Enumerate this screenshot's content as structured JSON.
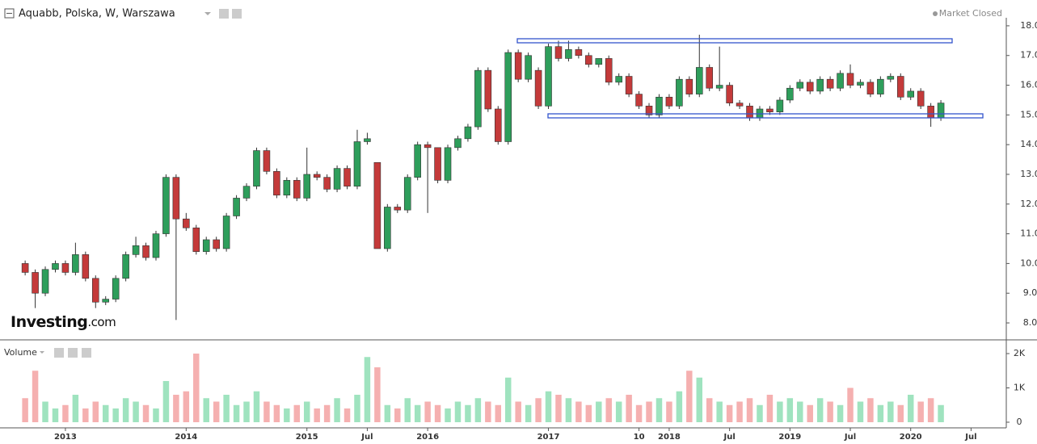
{
  "header": {
    "title": "Aquabb, Polska, W, Warszawa",
    "status": "Market Closed",
    "logo": "Investing",
    "logo_suffix": ".com"
  },
  "chart_data": [
    {
      "type": "candlestick",
      "x": [
        "2012-09",
        "2012-10",
        "2012-11",
        "2012-12",
        "2013-01",
        "2013-02",
        "2013-03",
        "2013-04",
        "2013-05",
        "2013-06",
        "2013-07",
        "2013-08",
        "2013-09",
        "2013-10",
        "2013-11",
        "2013-12",
        "2014-01",
        "2014-02",
        "2014-03",
        "2014-04",
        "2014-05",
        "2014-06",
        "2014-07",
        "2014-08",
        "2014-09",
        "2014-10",
        "2014-11",
        "2014-12",
        "2015-01",
        "2015-02",
        "2015-03",
        "2015-04",
        "2015-05",
        "2015-06",
        "2015-07",
        "2015-08",
        "2015-09",
        "2015-10",
        "2015-11",
        "2015-12",
        "2016-01",
        "2016-02",
        "2016-03",
        "2016-04",
        "2016-05",
        "2016-06",
        "2016-07",
        "2016-08",
        "2016-09",
        "2016-10",
        "2016-11",
        "2016-12",
        "2017-01",
        "2017-02",
        "2017-03",
        "2017-04",
        "2017-05",
        "2017-06",
        "2017-07",
        "2017-08",
        "2017-09",
        "2017-10",
        "2017-11",
        "2017-12",
        "2018-01",
        "2018-02",
        "2018-03",
        "2018-04",
        "2018-05",
        "2018-06",
        "2018-07",
        "2018-08",
        "2018-09",
        "2018-10",
        "2018-11",
        "2018-12",
        "2019-01",
        "2019-02",
        "2019-03",
        "2019-04",
        "2019-05",
        "2019-06",
        "2019-07",
        "2019-08",
        "2019-09",
        "2019-10",
        "2019-11",
        "2019-12",
        "2020-01",
        "2020-02",
        "2020-03",
        "2020-04"
      ],
      "open": [
        10.0,
        9.7,
        9.0,
        9.8,
        10.0,
        9.7,
        10.3,
        9.5,
        8.7,
        8.8,
        9.5,
        10.3,
        10.6,
        10.2,
        11.0,
        12.9,
        11.5,
        11.2,
        10.4,
        10.8,
        10.5,
        11.6,
        12.2,
        12.6,
        13.8,
        13.1,
        12.3,
        12.8,
        12.2,
        13.0,
        12.9,
        12.5,
        13.2,
        12.6,
        14.1,
        13.4,
        10.5,
        11.9,
        11.8,
        12.9,
        14.0,
        13.9,
        12.8,
        13.9,
        14.2,
        14.6,
        16.5,
        15.2,
        14.1,
        17.1,
        16.2,
        16.5,
        15.3,
        17.3,
        16.9,
        17.2,
        17.0,
        16.7,
        16.9,
        16.1,
        16.3,
        15.7,
        15.3,
        15.0,
        15.6,
        15.3,
        16.2,
        15.7,
        16.6,
        15.9,
        16.0,
        15.4,
        15.3,
        14.9,
        15.2,
        15.1,
        15.5,
        15.9,
        16.1,
        15.8,
        16.2,
        15.9,
        16.4,
        16.0,
        16.1,
        15.7,
        16.2,
        16.3,
        15.6,
        15.8,
        15.3,
        14.9
      ],
      "high": [
        10.1,
        9.8,
        9.9,
        10.1,
        10.1,
        10.7,
        10.4,
        9.6,
        8.9,
        9.6,
        10.4,
        10.9,
        10.7,
        11.1,
        13.0,
        13.0,
        11.7,
        11.3,
        10.9,
        10.9,
        11.7,
        12.3,
        12.7,
        13.9,
        13.9,
        13.2,
        12.9,
        12.9,
        13.9,
        13.1,
        13.0,
        13.3,
        13.3,
        14.5,
        14.4,
        13.4,
        12.0,
        12.0,
        13.0,
        14.1,
        14.1,
        13.9,
        14.0,
        14.3,
        14.7,
        16.6,
        16.6,
        15.3,
        17.2,
        17.2,
        17.1,
        16.6,
        17.4,
        17.5,
        17.5,
        17.3,
        17.1,
        16.9,
        17.0,
        16.4,
        16.4,
        15.8,
        15.4,
        15.7,
        15.7,
        16.3,
        16.3,
        17.7,
        16.7,
        17.3,
        16.1,
        15.5,
        15.4,
        15.3,
        15.3,
        15.6,
        16.0,
        16.2,
        16.2,
        16.3,
        16.3,
        16.5,
        16.7,
        16.2,
        16.2,
        16.3,
        16.4,
        16.4,
        15.9,
        15.9,
        15.4,
        15.5
      ],
      "low": [
        9.6,
        8.5,
        8.9,
        9.7,
        9.6,
        9.6,
        9.4,
        8.5,
        8.6,
        8.7,
        9.4,
        10.2,
        10.1,
        10.1,
        10.9,
        8.1,
        11.1,
        10.3,
        10.3,
        10.4,
        10.4,
        11.5,
        12.1,
        12.5,
        13.0,
        12.2,
        12.2,
        12.1,
        12.1,
        12.8,
        12.4,
        12.4,
        12.5,
        12.5,
        14.0,
        10.5,
        10.4,
        11.7,
        11.7,
        12.8,
        11.7,
        12.7,
        12.7,
        13.8,
        14.1,
        14.5,
        15.1,
        14.0,
        14.0,
        16.1,
        16.1,
        15.2,
        15.2,
        16.8,
        16.8,
        16.9,
        16.6,
        16.6,
        16.0,
        16.0,
        15.6,
        15.2,
        14.9,
        14.9,
        15.2,
        15.2,
        15.6,
        15.6,
        15.8,
        15.8,
        15.3,
        15.2,
        14.8,
        14.8,
        15.0,
        15.0,
        15.4,
        15.8,
        15.7,
        15.7,
        15.8,
        15.8,
        15.9,
        15.9,
        15.6,
        15.6,
        16.1,
        15.5,
        15.5,
        15.2,
        14.6,
        14.8
      ],
      "close": [
        9.7,
        9.0,
        9.8,
        10.0,
        9.7,
        10.3,
        9.5,
        8.7,
        8.8,
        9.5,
        10.3,
        10.6,
        10.2,
        11.0,
        12.9,
        11.5,
        11.2,
        10.4,
        10.8,
        10.5,
        11.6,
        12.2,
        12.6,
        13.8,
        13.1,
        12.3,
        12.8,
        12.2,
        13.0,
        12.9,
        12.5,
        13.2,
        12.6,
        14.1,
        14.2,
        10.5,
        11.9,
        11.8,
        12.9,
        14.0,
        13.9,
        12.8,
        13.9,
        14.2,
        14.6,
        16.5,
        15.2,
        14.1,
        17.1,
        16.2,
        17.0,
        15.3,
        17.3,
        16.9,
        17.2,
        17.0,
        16.7,
        16.9,
        16.1,
        16.3,
        15.7,
        15.3,
        15.0,
        15.6,
        15.3,
        16.2,
        15.7,
        16.6,
        15.9,
        16.0,
        15.4,
        15.3,
        14.9,
        15.2,
        15.1,
        15.5,
        15.9,
        16.1,
        15.8,
        16.2,
        15.9,
        16.4,
        16.0,
        16.1,
        15.7,
        16.2,
        16.3,
        15.6,
        15.8,
        15.3,
        14.9,
        15.4
      ],
      "colors": {
        "up": "#2e9e5b",
        "down": "#c43a3a"
      },
      "xlim": [
        "2012-07",
        "2020-10"
      ],
      "xticks": [
        {
          "value": "2013-01",
          "label": "2013"
        },
        {
          "value": "2014-01",
          "label": "2014"
        },
        {
          "value": "2015-01",
          "label": "2015"
        },
        {
          "value": "2015-07",
          "label": "Jul"
        },
        {
          "value": "2016-01",
          "label": "2016"
        },
        {
          "value": "2017-01",
          "label": "2017"
        },
        {
          "value": "2017-10",
          "label": "10"
        },
        {
          "value": "2018-01",
          "label": "2018"
        },
        {
          "value": "2018-07",
          "label": "Jul"
        },
        {
          "value": "2019-01",
          "label": "2019"
        },
        {
          "value": "2019-07",
          "label": "Jul"
        },
        {
          "value": "2020-01",
          "label": "2020"
        },
        {
          "value": "2020-07",
          "label": "Jul"
        }
      ],
      "ylim": [
        7.43,
        18.27
      ],
      "yticks": [
        {
          "value": 8,
          "label": "8.00"
        },
        {
          "value": 9,
          "label": "9.00"
        },
        {
          "value": 10,
          "label": "10.00"
        },
        {
          "value": 11,
          "label": "11.00"
        },
        {
          "value": 12,
          "label": "12.00"
        },
        {
          "value": 13,
          "label": "13.00"
        },
        {
          "value": 14,
          "label": "14.00"
        },
        {
          "value": 15,
          "label": "15.00"
        },
        {
          "value": 16,
          "label": "16.00"
        },
        {
          "value": 17,
          "label": "17.00"
        },
        {
          "value": 18,
          "label": "18.00"
        }
      ]
    },
    {
      "type": "bar",
      "title": "Volume",
      "values": [
        700,
        1500,
        600,
        400,
        500,
        800,
        400,
        600,
        500,
        400,
        700,
        600,
        500,
        400,
        1200,
        800,
        900,
        2000,
        700,
        600,
        800,
        500,
        600,
        900,
        600,
        500,
        400,
        500,
        600,
        400,
        500,
        700,
        400,
        800,
        1900,
        1600,
        500,
        400,
        700,
        500,
        600,
        500,
        400,
        600,
        500,
        700,
        600,
        500,
        1300,
        600,
        500,
        700,
        900,
        800,
        700,
        600,
        500,
        600,
        700,
        600,
        800,
        500,
        600,
        700,
        600,
        900,
        1500,
        1300,
        700,
        600,
        500,
        600,
        700,
        500,
        800,
        600,
        700,
        600,
        500,
        700,
        600,
        500,
        1000,
        600,
        700,
        500,
        600,
        500,
        800,
        600,
        700,
        500
      ],
      "colors": {
        "up": "#9fe3bf",
        "down": "#f5b0b0"
      },
      "ylim": [
        -165,
        2282
      ],
      "yticks": [
        0,
        {
          "value": 1000,
          "label": "1K"
        },
        {
          "value": 2000,
          "label": "2K"
        }
      ]
    }
  ]
}
